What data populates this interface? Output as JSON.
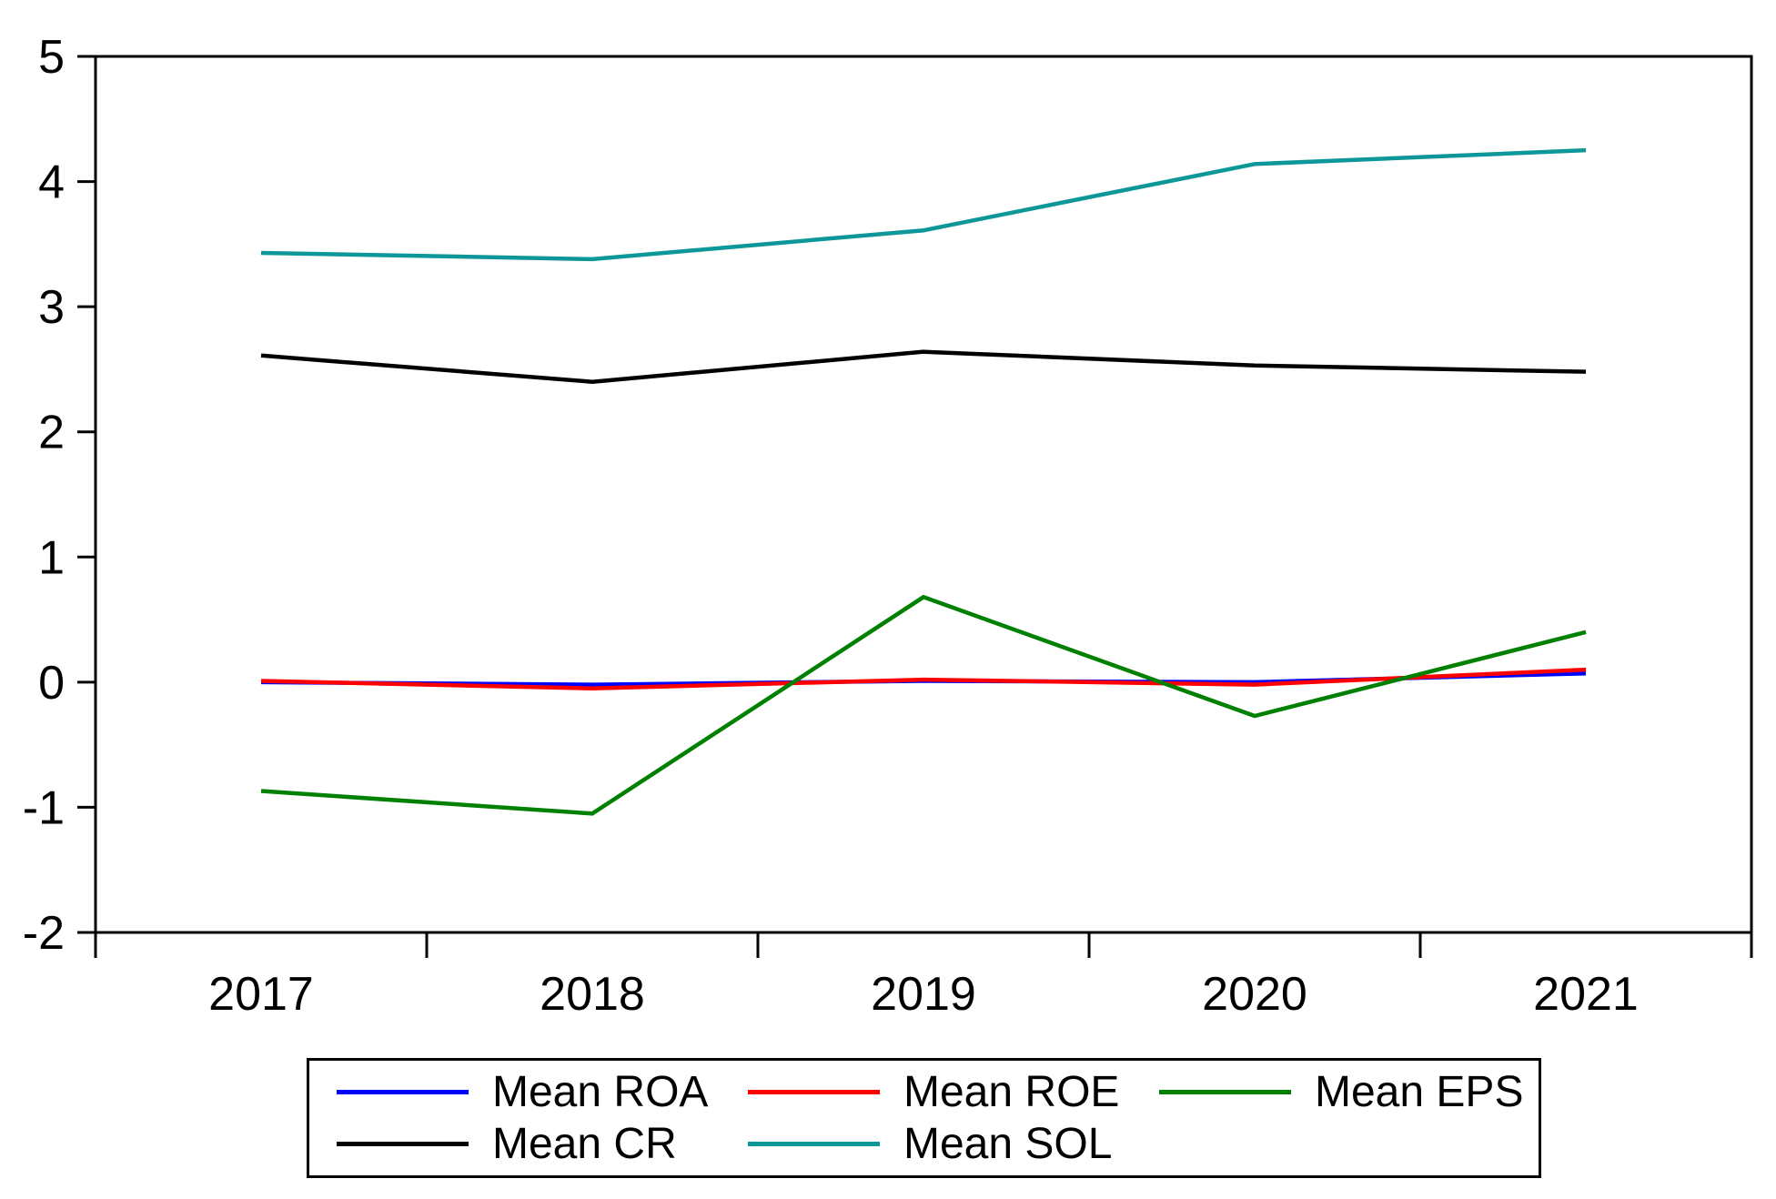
{
  "chart_data": {
    "type": "line",
    "categories": [
      "2017",
      "2018",
      "2019",
      "2020",
      "2021"
    ],
    "series": [
      {
        "name": "Mean ROA",
        "color": "#0000FF",
        "values": [
          0.0,
          -0.02,
          0.01,
          0.0,
          0.07
        ]
      },
      {
        "name": "Mean ROE",
        "color": "#FF0000",
        "values": [
          0.01,
          -0.05,
          0.02,
          -0.02,
          0.1
        ]
      },
      {
        "name": "Mean EPS",
        "color": "#008000",
        "values": [
          -0.87,
          -1.05,
          0.68,
          -0.27,
          0.4
        ]
      },
      {
        "name": "Mean CR",
        "color": "#000000",
        "values": [
          2.61,
          2.4,
          2.64,
          2.53,
          2.48
        ]
      },
      {
        "name": "Mean SOL",
        "color": "#0D9798",
        "values": [
          3.43,
          3.38,
          3.61,
          4.14,
          4.25
        ]
      }
    ],
    "title": "",
    "xlabel": "",
    "ylabel": "",
    "ylim": [
      -2,
      5
    ],
    "yticks": [
      5,
      4,
      3,
      2,
      1,
      0,
      -1,
      -2
    ],
    "ytick_labels": [
      "5",
      "4",
      "3",
      "2",
      "1",
      "0",
      "-1",
      "-2"
    ],
    "grid": false,
    "legend_position": "bottom",
    "legend_rows": [
      [
        0,
        1,
        2
      ],
      [
        3,
        4
      ]
    ],
    "axis_color": "#000000",
    "background": "#FFFFFF"
  }
}
